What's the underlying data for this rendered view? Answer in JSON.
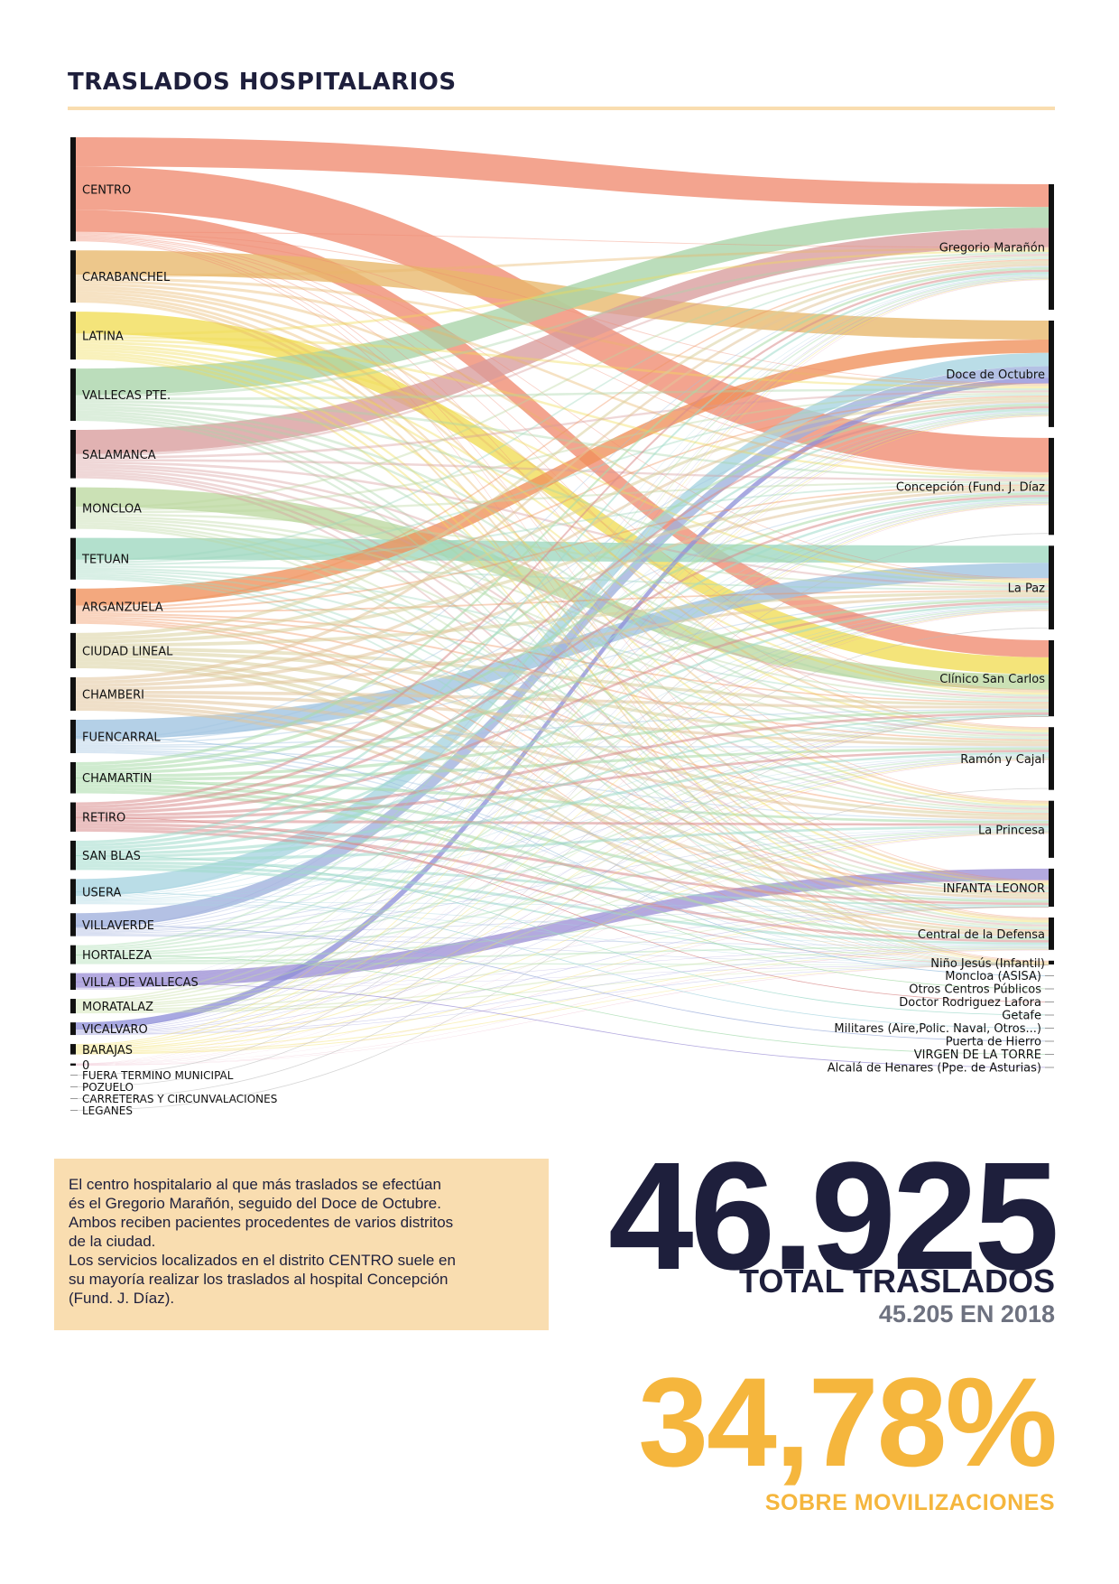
{
  "title": "TRASLADOS HOSPITALARIOS",
  "note": {
    "lines": [
      "El centro hospitalario al que más traslados se efectúan",
      "és el Gregorio Marañón, seguido del Doce de Octubre.",
      "Ambos reciben pacientes procedentes de varios distritos",
      "de la ciudad.",
      "Los servicios localizados en el distrito CENTRO suele en",
      "su mayoría realizar los traslados al hospital Concepción",
      "(Fund. J. Díaz)."
    ]
  },
  "stats": {
    "total_number": "46.925",
    "total_label": "TOTAL TRASLADOS",
    "previous": "45.205 EN 2018",
    "percent_number": "34,78%",
    "percent_label": "SOBRE MOVILIZACIONES"
  },
  "chart_data": {
    "type": "sankey",
    "sources": [
      {
        "name": "CENTRO",
        "value": 4300,
        "color": "#f08a70"
      },
      {
        "name": "CARABANCHEL",
        "value": 2160,
        "color": "#e8b76a"
      },
      {
        "name": "LATINA",
        "value": 1980,
        "color": "#f1dd54"
      },
      {
        "name": "VALLECAS PTE.",
        "value": 2160,
        "color": "#a8d4a8"
      },
      {
        "name": "SALAMANCA",
        "value": 2000,
        "color": "#d89c9c"
      },
      {
        "name": "MONCLOA",
        "value": 1720,
        "color": "#bcd8a0"
      },
      {
        "name": "TETUAN",
        "value": 1720,
        "color": "#9ed7bf"
      },
      {
        "name": "ARGANZUELA",
        "value": 1460,
        "color": "#f0905a"
      },
      {
        "name": "CIUDAD LINEAL",
        "value": 1460,
        "color": "#d9cf9c"
      },
      {
        "name": "CHAMBERI",
        "value": 1380,
        "color": "#e2c49a"
      },
      {
        "name": "FUENCARRAL",
        "value": 1380,
        "color": "#9fc3e0"
      },
      {
        "name": "CHAMARTIN",
        "value": 1290,
        "color": "#a8dba8"
      },
      {
        "name": "RETIRO",
        "value": 1210,
        "color": "#d98c8c"
      },
      {
        "name": "SAN BLAS",
        "value": 1210,
        "color": "#9fdaca"
      },
      {
        "name": "USERA",
        "value": 1040,
        "color": "#a6d4e0"
      },
      {
        "name": "VILLAVERDE",
        "value": 950,
        "color": "#9fb0dc"
      },
      {
        "name": "HORTALEZA",
        "value": 780,
        "color": "#a8dcb0"
      },
      {
        "name": "VILLA DE VALLECAS",
        "value": 690,
        "color": "#9d91d6"
      },
      {
        "name": "MORATALAZ",
        "value": 600,
        "color": "#c6dfa0"
      },
      {
        "name": "VICALVARO",
        "value": 520,
        "color": "#8f8fd8"
      },
      {
        "name": "BARAJAS",
        "value": 430,
        "color": "#f2df60"
      },
      {
        "name": "0",
        "value": 90,
        "color": "#e59ab4"
      },
      {
        "name": "FUERA TERMINO MUNICIPAL",
        "value": 10,
        "color": "#cccccc"
      },
      {
        "name": "POZUELO",
        "value": 10,
        "color": "#cccccc"
      },
      {
        "name": "CARRETERAS Y CIRCUNVALACIONES",
        "value": 10,
        "color": "#cccccc"
      },
      {
        "name": "LEGANES",
        "value": 10,
        "color": "#cccccc"
      }
    ],
    "targets": [
      {
        "name": "Gregorio Marañón",
        "value": 6600
      },
      {
        "name": "Doce de Octubre",
        "value": 5600
      },
      {
        "name": "Concepción (Fund. J. Díaz",
        "value": 5100
      },
      {
        "name": "La Paz",
        "value": 4400
      },
      {
        "name": "Clínico San Carlos",
        "value": 4000
      },
      {
        "name": "Ramón y Cajal",
        "value": 3300
      },
      {
        "name": "La Princesa",
        "value": 3000
      },
      {
        "name": "INFANTA LEONOR",
        "value": 2000
      },
      {
        "name": "Central de la Defensa",
        "value": 1700
      },
      {
        "name": "Niño Jesús (Infantil)",
        "value": 200
      },
      {
        "name": "Moncloa (ASISA)",
        "value": 40
      },
      {
        "name": "Otros Centros Públicos",
        "value": 40
      },
      {
        "name": "Doctor Rodriguez Lafora",
        "value": 40
      },
      {
        "name": "Getafe",
        "value": 40
      },
      {
        "name": "Militares (Aire,Polic. Naval, Otros...)",
        "value": 40
      },
      {
        "name": "Puerta de Hierro",
        "value": 40
      },
      {
        "name": "VIRGEN DE LA TORRE",
        "value": 40
      },
      {
        "name": "Alcalá de Henares (Ppe. de Asturias)",
        "value": 40
      }
    ],
    "main_flows": [
      {
        "source": "CENTRO",
        "target": "Gregorio Marañón",
        "value": 1200
      },
      {
        "source": "CENTRO",
        "target": "Concepción (Fund. J. Díaz",
        "value": 1800
      },
      {
        "source": "CENTRO",
        "target": "Clínico San Carlos",
        "value": 900
      },
      {
        "source": "CARABANCHEL",
        "target": "Doce de Octubre",
        "value": 1000
      },
      {
        "source": "LATINA",
        "target": "Clínico San Carlos",
        "value": 900
      },
      {
        "source": "VALLECAS PTE.",
        "target": "Gregorio Marañón",
        "value": 1100
      },
      {
        "source": "SALAMANCA",
        "target": "Gregorio Marañón",
        "value": 1000
      },
      {
        "source": "MONCLOA",
        "target": "Clínico San Carlos",
        "value": 800
      },
      {
        "source": "TETUAN",
        "target": "La Paz",
        "value": 900
      },
      {
        "source": "ARGANZUELA",
        "target": "Doce de Octubre",
        "value": 700
      },
      {
        "source": "FUENCARRAL",
        "target": "La Paz",
        "value": 800
      },
      {
        "source": "USERA",
        "target": "Doce de Octubre",
        "value": 700
      },
      {
        "source": "VILLAVERDE",
        "target": "Doce de Octubre",
        "value": 600
      },
      {
        "source": "VILLA DE VALLECAS",
        "target": "INFANTA LEONOR",
        "value": 600
      },
      {
        "source": "VICALVARO",
        "target": "Doce de Octubre",
        "value": 300
      }
    ]
  }
}
